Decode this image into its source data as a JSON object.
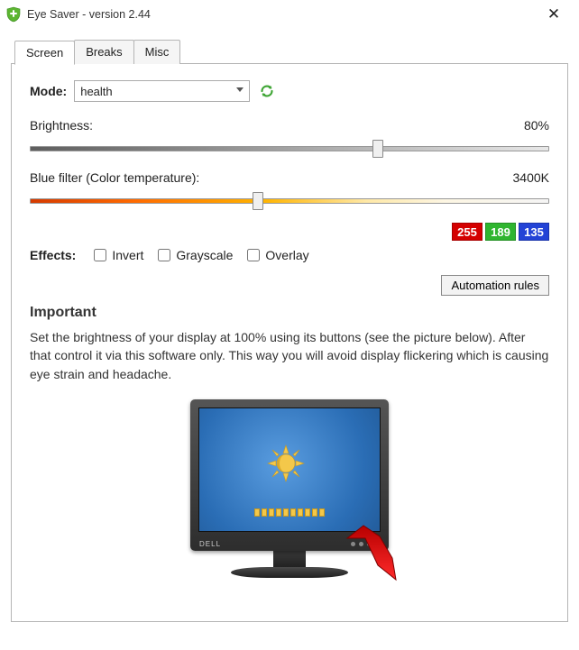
{
  "window": {
    "title": "Eye Saver - version 2.44",
    "icon_name": "shield-plus-icon",
    "icon_bg": "#5cb531",
    "icon_fg": "#ffffff"
  },
  "tabs": [
    {
      "label": "Screen",
      "active": true
    },
    {
      "label": "Breaks",
      "active": false
    },
    {
      "label": "Misc",
      "active": false
    }
  ],
  "mode": {
    "label": "Mode:",
    "selected": "health",
    "refresh_color": "#3fa535"
  },
  "brightness": {
    "label": "Brightness:",
    "value_text": "80%",
    "value_pct": 67
  },
  "temperature": {
    "label": "Blue filter (Color temperature):",
    "value_text": "3400K",
    "value_pct": 44
  },
  "temperature_gradient": {
    "stops": [
      "#d53a00",
      "#ff6a00",
      "#ffb400",
      "#ffe9a8",
      "#fdf6e3",
      "#f5f5f5"
    ]
  },
  "rgb": {
    "r": {
      "value": "255",
      "bg": "#d40000"
    },
    "g": {
      "value": "189",
      "bg": "#2fb52f"
    },
    "b": {
      "value": "135",
      "bg": "#2343d6"
    }
  },
  "effects": {
    "label": "Effects:",
    "items": [
      {
        "key": "invert",
        "label": "Invert",
        "checked": false
      },
      {
        "key": "grayscale",
        "label": "Grayscale",
        "checked": false
      },
      {
        "key": "overlay",
        "label": "Overlay",
        "checked": false
      }
    ]
  },
  "automation_button": "Automation rules",
  "important": {
    "heading": "Important",
    "text": "Set the brightness of your display at 100% using its buttons (see the picture below). After that control it via this software only. This way you will avoid display flickering which is causing eye strain and headache."
  },
  "monitor": {
    "brand": "DELL",
    "screen_bg_center": "#5a9de0",
    "screen_bg_edge": "#235d9c",
    "sun_color": "#f4c84a",
    "arrow_color": "#e30000",
    "osd_segments": 10
  }
}
